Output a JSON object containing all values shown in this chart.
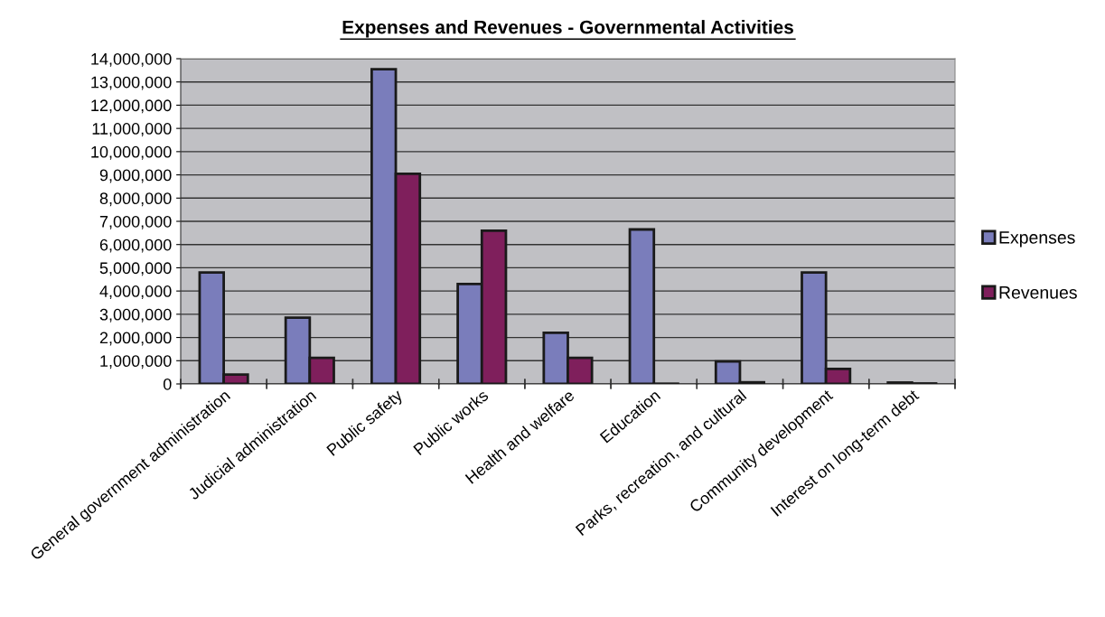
{
  "chart_data": {
    "type": "bar",
    "title": "Expenses and Revenues - Governmental Activities",
    "categories": [
      "General government administration",
      "Judicial administration",
      "Public safety",
      "Public works",
      "Health and welfare",
      "Education",
      "Parks, recreation, and cultural",
      "Community development",
      "Interest on long-term debt"
    ],
    "series": [
      {
        "name": "Expenses",
        "color": "#7a7dbb",
        "values": [
          4800000,
          2850000,
          13550000,
          4300000,
          2200000,
          6650000,
          970000,
          4800000,
          60000
        ]
      },
      {
        "name": "Revenues",
        "color": "#7f1f5c",
        "values": [
          400000,
          1120000,
          9050000,
          6600000,
          1120000,
          10000,
          70000,
          650000,
          20000
        ]
      }
    ],
    "ylim": [
      0,
      14000000
    ],
    "yticks": [
      {
        "value": 0,
        "label": "0"
      },
      {
        "value": 1000000,
        "label": "1,000,000"
      },
      {
        "value": 2000000,
        "label": "2,000,000"
      },
      {
        "value": 3000000,
        "label": "3,000,000"
      },
      {
        "value": 4000000,
        "label": "4,000,000"
      },
      {
        "value": 5000000,
        "label": "5,000,000"
      },
      {
        "value": 6000000,
        "label": "6,000,000"
      },
      {
        "value": 7000000,
        "label": "7,000,000"
      },
      {
        "value": 8000000,
        "label": "8,000,000"
      },
      {
        "value": 9000000,
        "label": "9,000,000"
      },
      {
        "value": 10000000,
        "label": "10,000,000"
      },
      {
        "value": 11000000,
        "label": "11,000,000"
      },
      {
        "value": 12000000,
        "label": "12,000,000"
      },
      {
        "value": 13000000,
        "label": "13,000,000"
      },
      {
        "value": 14000000,
        "label": "14,000,000"
      }
    ],
    "grid": "y",
    "legend": "right"
  }
}
